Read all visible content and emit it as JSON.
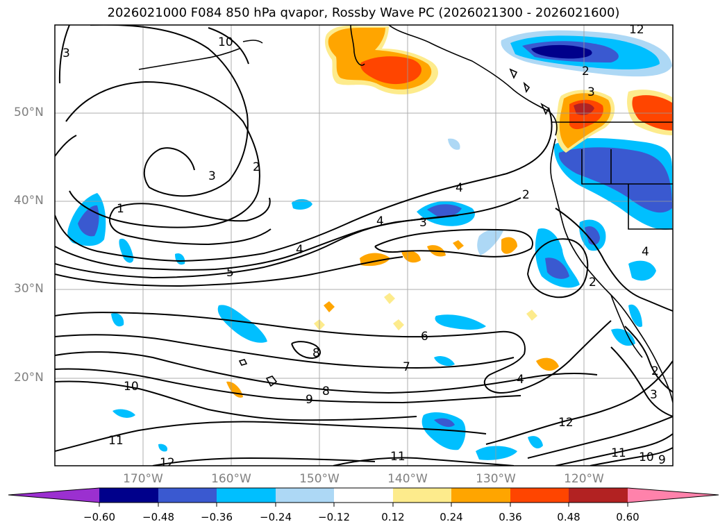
{
  "title": "2026021000 F084 850 hPa qvapor, Rossby Wave PC (2026021300 - 2026021600)",
  "lat_labels": [
    "50°N",
    "40°N",
    "30°N",
    "20°N"
  ],
  "lon_labels": [
    "170°W",
    "160°W",
    "150°W",
    "140°W",
    "130°W",
    "120°W"
  ],
  "contour_labels": [
    "10",
    "3",
    "2",
    "3",
    "1",
    "4",
    "5",
    "4",
    "3",
    "4",
    "2",
    "2",
    "4",
    "2",
    "3",
    "8",
    "6",
    "7",
    "8",
    "9",
    "10",
    "11",
    "12",
    "11",
    "12",
    "4",
    "2",
    "3",
    "11",
    "10",
    "9",
    "12"
  ],
  "colorbar": {
    "tick_labels": [
      "−0.60",
      "−0.48",
      "−0.36",
      "−0.24",
      "−0.12",
      "0.12",
      "0.24",
      "0.36",
      "0.48",
      "0.60"
    ],
    "colors": [
      "#9b30d0",
      "#00008b",
      "#3a59d0",
      "#00bfff",
      "#add8f5",
      "#ffffff",
      "#fdeb8c",
      "#ffa500",
      "#ff4500",
      "#b22222",
      "#ff82ab"
    ]
  }
}
